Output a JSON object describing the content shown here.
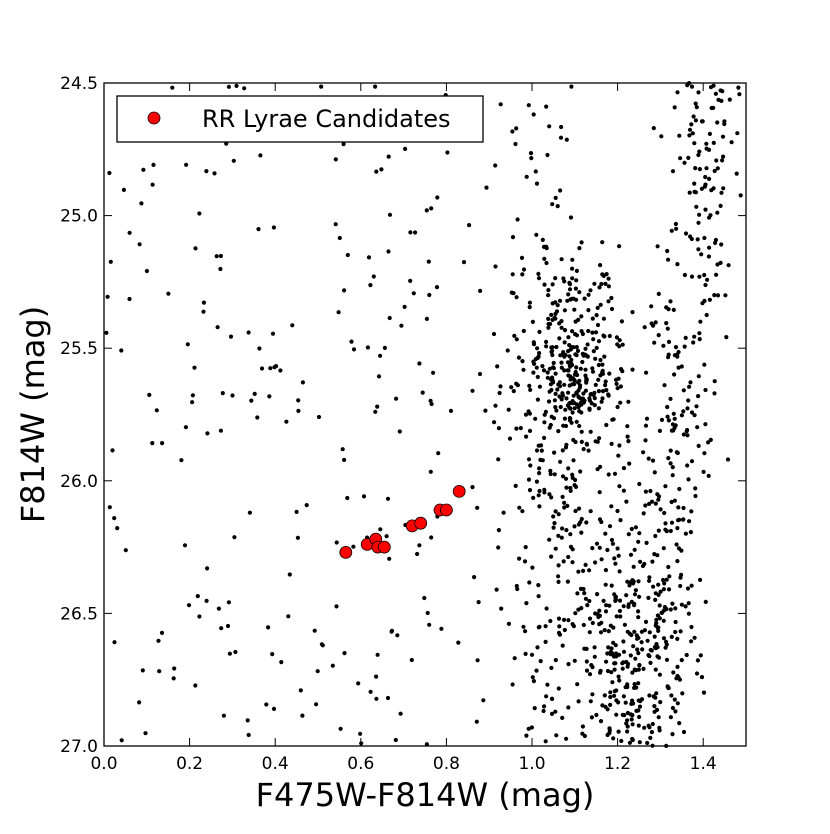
{
  "chart_data": {
    "type": "scatter",
    "title": "",
    "xlabel": "F475W-F814W (mag)",
    "ylabel": "F814W (mag)",
    "xlim": [
      0.0,
      1.5
    ],
    "ylim": [
      27.0,
      24.5
    ],
    "y_inverted": true,
    "xticks": [
      "0.0",
      "0.2",
      "0.4",
      "0.6",
      "0.8",
      "1.0",
      "1.2",
      "1.4"
    ],
    "yticks": [
      "24.5",
      "25.0",
      "25.5",
      "26.0",
      "26.5",
      "27.0"
    ],
    "grid": false,
    "legend": {
      "position": "top-left",
      "entries": [
        "RR Lyrae Candidates"
      ]
    },
    "series": [
      {
        "name": "RR Lyrae Candidates",
        "marker": "circle",
        "color": "#ff0000",
        "x": [
          0.565,
          0.615,
          0.635,
          0.64,
          0.655,
          0.72,
          0.74,
          0.785,
          0.8,
          0.83
        ],
        "y": [
          26.27,
          26.24,
          26.22,
          26.25,
          26.25,
          26.17,
          26.16,
          26.11,
          26.11,
          26.04
        ]
      }
    ],
    "background_stars": {
      "color": "#000000",
      "marker": "small-dot",
      "description_density": [
        {
          "label": "sparse field stars",
          "x_range": [
            0.0,
            0.95
          ],
          "y_range": [
            24.5,
            27.0
          ],
          "count": 250
        },
        {
          "label": "dense red clump",
          "x_center": 1.1,
          "y_center": 25.62,
          "sx": 0.06,
          "sy": 0.1,
          "count": 220
        },
        {
          "label": "upper clump cloud",
          "x_center": 1.1,
          "y_center": 25.3,
          "sx": 0.07,
          "sy": 0.12,
          "count": 90
        },
        {
          "label": "lower cloud",
          "x_center": 1.1,
          "y_center": 25.95,
          "sx": 0.08,
          "sy": 0.15,
          "count": 80
        },
        {
          "label": "red giant branch",
          "x_start": 1.42,
          "y_start": 24.5,
          "x_end": 1.25,
          "y_end": 27.0,
          "width": 0.05,
          "count": 350
        },
        {
          "label": "lower main band",
          "x_center": 1.2,
          "y_center": 26.6,
          "sx": 0.09,
          "sy": 0.25,
          "count": 320
        },
        {
          "label": "left edge of main band",
          "x_range": [
            0.95,
            1.1
          ],
          "y_range": [
            24.5,
            27.0
          ],
          "count": 120
        }
      ]
    }
  }
}
